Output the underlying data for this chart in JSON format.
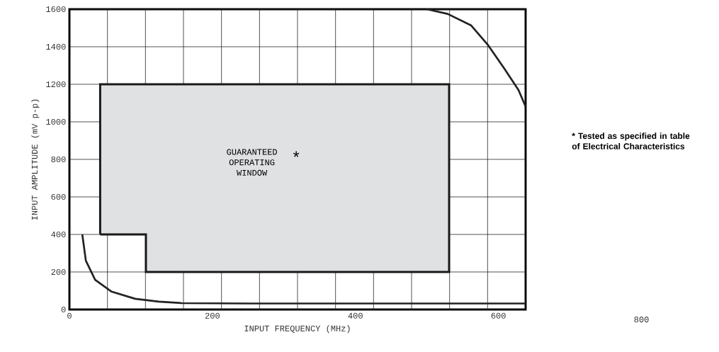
{
  "chart_data": {
    "type": "line",
    "xlabel": "INPUT FREQUENCY (MHz)",
    "ylabel": "INPUT AMPLITUDE (mV p-p)",
    "xlim": [
      0,
      638
    ],
    "ylim": [
      0,
      1600
    ],
    "xticks": [
      0,
      200,
      400,
      600
    ],
    "yticks": [
      0,
      200,
      400,
      600,
      800,
      1000,
      1200,
      1400,
      1600
    ],
    "grid": true,
    "series": [
      {
        "type": "area",
        "color": "#e0e1e3",
        "x": [
          43,
          43,
          531,
          531,
          107,
          107,
          43
        ],
        "values": [
          400,
          1200,
          1200,
          200,
          200,
          400,
          400
        ]
      },
      {
        "color": "#222222",
        "x": [
          18,
          23,
          36,
          59,
          92,
          125,
          157,
          250,
          400,
          638
        ],
        "values": [
          400,
          260,
          158,
          95,
          57,
          42,
          34,
          32,
          32,
          32
        ]
      },
      {
        "color": "#222222",
        "x": [
          500,
          529,
          562,
          585,
          608,
          628,
          638
        ],
        "values": [
          1600,
          1575,
          1513,
          1411,
          1285,
          1170,
          1081
        ]
      }
    ],
    "annotations": [
      "GUARANTEED OPERATING WINDOW",
      "*",
      "* Tested as specified in table of Electrical Characteristics",
      "800"
    ]
  }
}
